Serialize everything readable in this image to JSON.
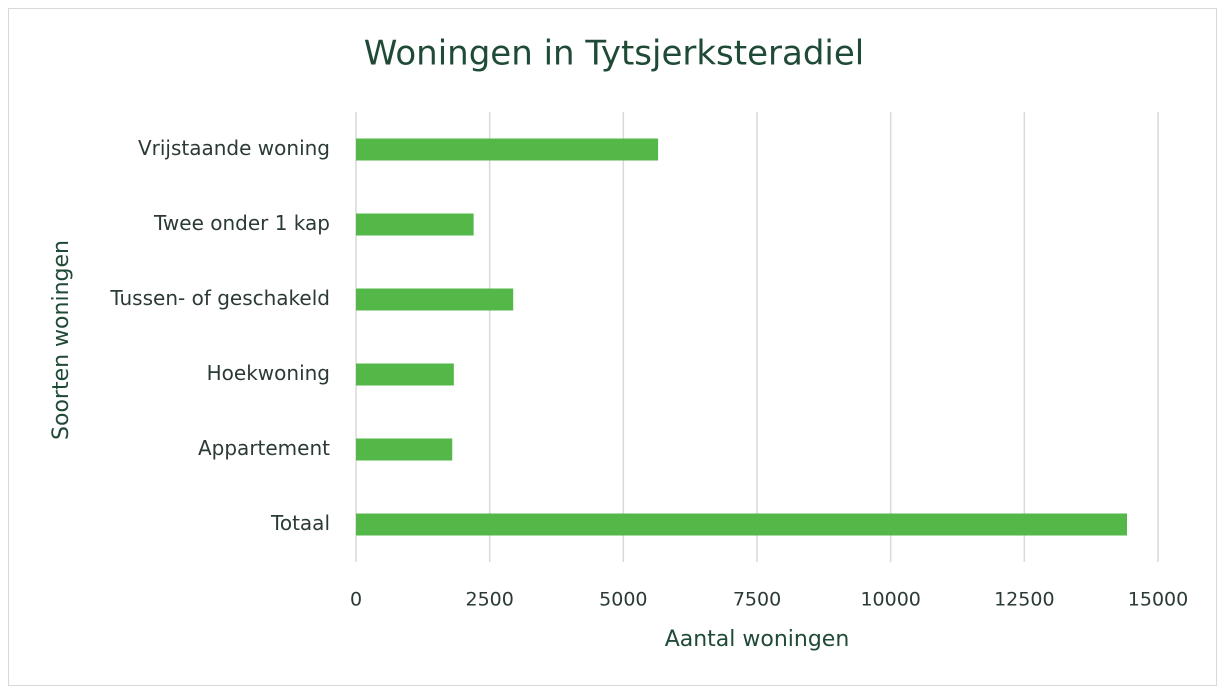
{
  "chart_data": {
    "type": "barh",
    "title": "Woningen in Tytsjerksteradiel",
    "x_label": "Aantal woningen",
    "y_label": "Soorten woningen",
    "categories": [
      "Vrijstaande woning",
      "Twee onder 1 kap",
      "Tussen- of geschakeld",
      "Hoekwoning",
      "Appartement",
      "Totaal"
    ],
    "values": [
      5650,
      2200,
      2940,
      1830,
      1800,
      14420
    ],
    "color": "#53b848",
    "xlim": [
      0,
      15000
    ],
    "xticks": [
      0,
      2500,
      5000,
      7500,
      10000,
      12500,
      15000
    ],
    "grid": true
  }
}
